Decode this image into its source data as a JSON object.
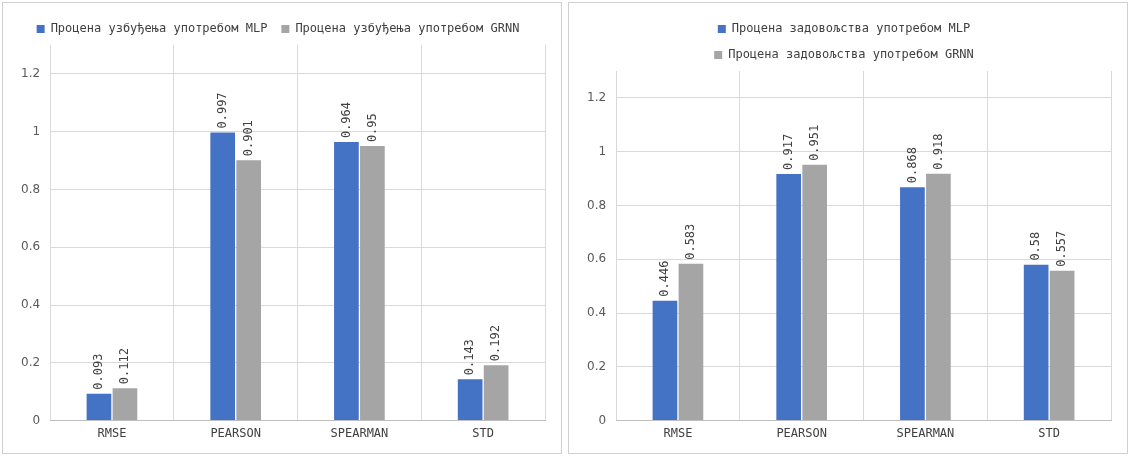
{
  "chart_data": [
    {
      "type": "bar",
      "categories": [
        "RMSE",
        "PEARSON",
        "SPEARMAN",
        "STD"
      ],
      "series": [
        {
          "name": "Процена узбуђења употребом MLP",
          "color": "#4472c4",
          "values": [
            0.093,
            0.997,
            0.964,
            0.143
          ]
        },
        {
          "name": "Процена узбуђења употребом GRNN",
          "color": "#a5a5a5",
          "values": [
            0.112,
            0.901,
            0.95,
            0.192
          ]
        }
      ],
      "ylim": [
        0,
        1.3
      ],
      "yticks": [
        0,
        0.2,
        0.4,
        0.6,
        0.8,
        1,
        1.2
      ],
      "grid": true,
      "legend": "top",
      "data_labels": true
    },
    {
      "type": "bar",
      "categories": [
        "RMSE",
        "PEARSON",
        "SPEARMAN",
        "STD"
      ],
      "series": [
        {
          "name": "Процена задовољства употребом MLP",
          "color": "#4472c4",
          "values": [
            0.446,
            0.917,
            0.868,
            0.58
          ]
        },
        {
          "name": "Процена задовољства употребом GRNN",
          "color": "#a5a5a5",
          "values": [
            0.583,
            0.951,
            0.918,
            0.557
          ]
        }
      ],
      "ylim": [
        0,
        1.3
      ],
      "yticks": [
        0,
        0.2,
        0.4,
        0.6,
        0.8,
        1,
        1.2
      ],
      "grid": true,
      "legend": "top",
      "data_labels": true
    }
  ]
}
